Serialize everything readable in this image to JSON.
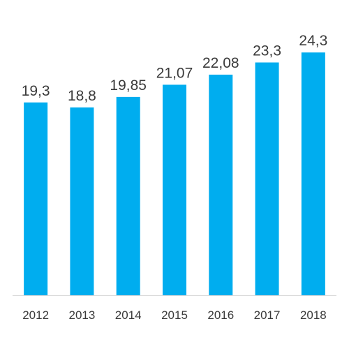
{
  "chart_data": {
    "type": "bar",
    "categories": [
      "2012",
      "2013",
      "2014",
      "2015",
      "2016",
      "2017",
      "2018"
    ],
    "values": [
      19.3,
      18.8,
      19.85,
      21.07,
      22.08,
      23.3,
      24.3
    ],
    "data_labels": [
      "19,3",
      "18,8",
      "19,85",
      "21,07",
      "22,08",
      "23,3",
      "24,3"
    ],
    "title": "",
    "xlabel": "",
    "ylabel": "",
    "ylim": [
      0,
      25.5
    ],
    "grid": false,
    "legend": "none",
    "colors": {
      "bar": "#00ADEF",
      "axis": "#d9d9d9",
      "text": "#3a3a3a"
    }
  }
}
